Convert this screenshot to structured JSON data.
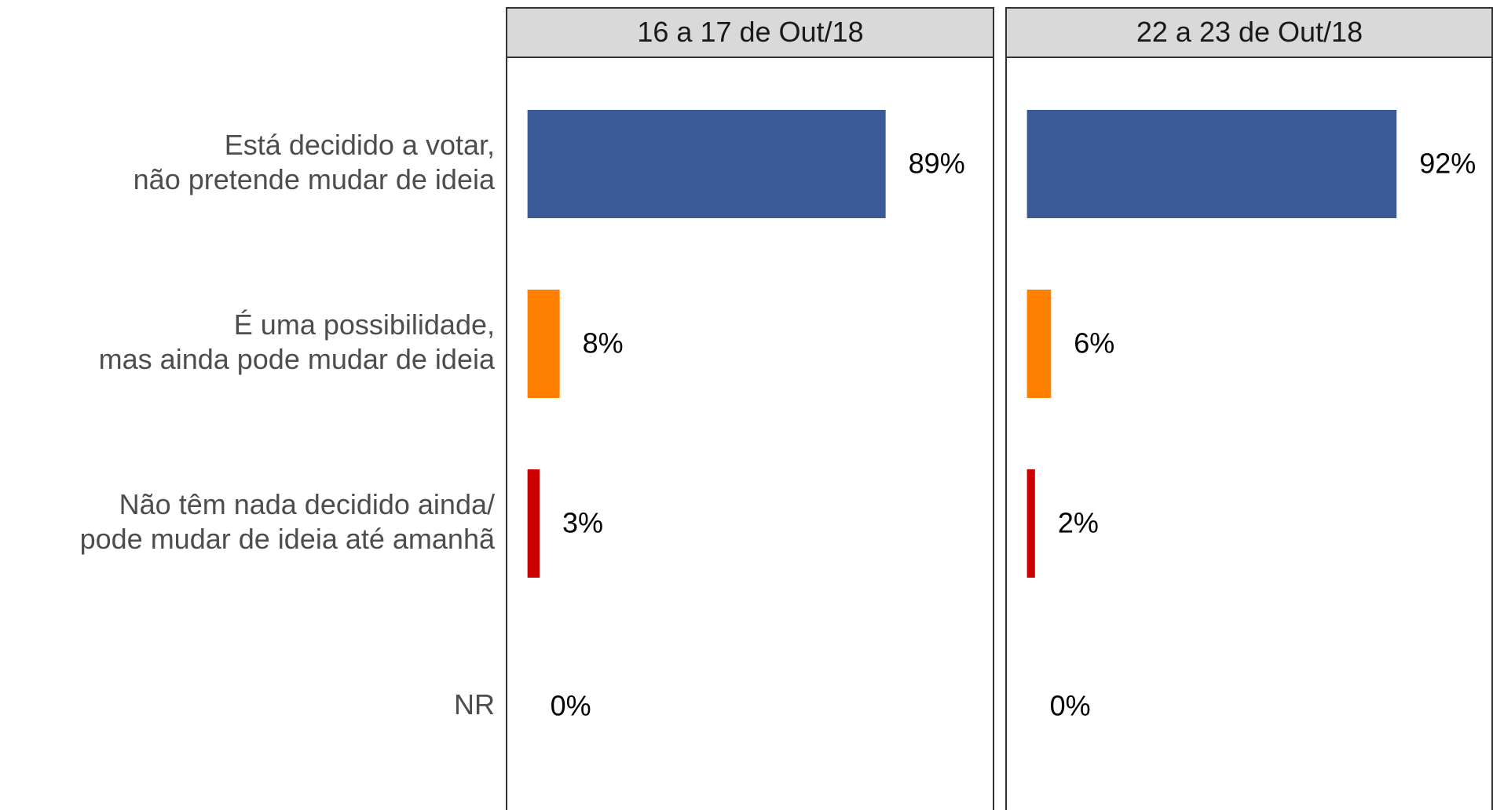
{
  "chart_data": {
    "type": "bar",
    "orientation": "horizontal",
    "categories": [
      "Está decidido a votar,\nnão pretende mudar de ideia",
      "É uma possibilidade,\nmas ainda pode mudar de ideia",
      "Não têm nada decidido ainda/\npode mudar de ideia até amanhã",
      "NR"
    ],
    "colors": [
      "#3b5897",
      "#ff7f00",
      "#cc0000",
      "#999999"
    ],
    "xlim": [
      -5.2,
      116
    ],
    "facets": [
      {
        "title": "16 a 17 de Out/18",
        "values": [
          89,
          8,
          3,
          0
        ],
        "value_labels": [
          "89%",
          "8%",
          "3%",
          "0%"
        ]
      },
      {
        "title": "22 a 23 de Out/18",
        "values": [
          92,
          6,
          2,
          0
        ],
        "value_labels": [
          "92%",
          "6%",
          "2%",
          "0%"
        ]
      }
    ]
  }
}
